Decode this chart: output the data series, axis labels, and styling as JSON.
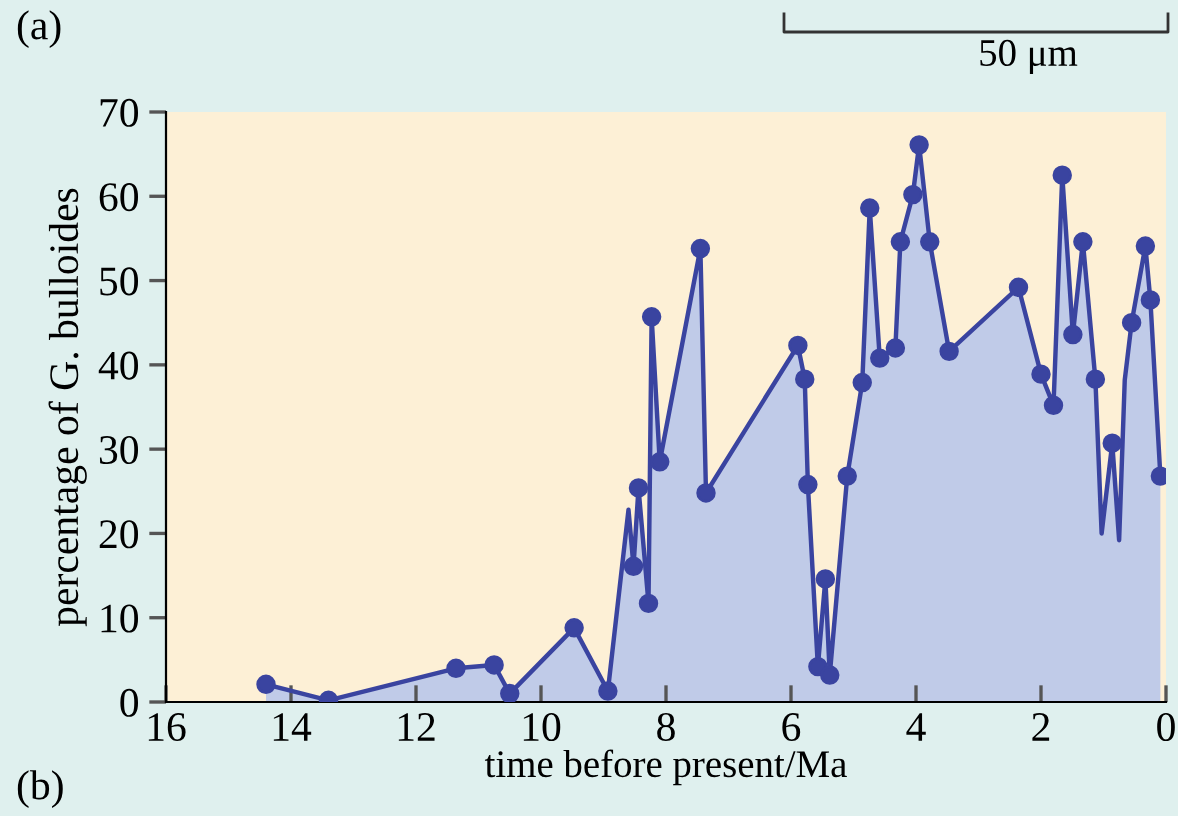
{
  "chart_data": {
    "type": "area",
    "xlabel": "time before present/Ma",
    "ylabel": "percentage of G. bulloides",
    "xlim": [
      16,
      0
    ],
    "xticks": [
      16,
      14,
      12,
      10,
      8,
      6,
      4,
      2,
      0
    ],
    "ylim": [
      0,
      70
    ],
    "yticks": [
      0,
      10,
      20,
      30,
      40,
      50,
      60,
      70
    ],
    "grid": false,
    "annotations": [
      "(a)",
      "50 μm",
      "(b)"
    ],
    "series": [
      {
        "color": "#3a44a0",
        "marker": "none",
        "x": [
          14.4,
          13.4,
          11.36,
          10.75,
          10.5,
          9.47,
          8.93,
          8.6,
          8.52,
          8.44,
          8.28,
          8.23,
          8.1,
          7.45,
          7.36,
          5.89,
          5.78,
          5.73,
          5.57,
          5.45,
          5.38,
          5.1,
          4.86,
          4.74,
          4.58,
          4.33,
          4.25,
          4.05,
          3.95,
          3.78,
          3.47,
          2.36,
          2.0,
          1.8,
          1.66,
          1.49,
          1.33,
          1.13,
          1.03,
          0.86,
          0.75,
          0.66,
          0.55,
          0.33,
          0.25,
          0.09
        ],
        "values": [
          2.1,
          0.2,
          4.0,
          4.4,
          1.0,
          8.8,
          1.3,
          22.8,
          16.1,
          25.4,
          11.7,
          45.7,
          28.5,
          53.8,
          24.8,
          42.3,
          38.3,
          25.8,
          4.2,
          14.6,
          3.2,
          26.8,
          37.9,
          58.6,
          40.8,
          42.0,
          54.6,
          60.2,
          66.1,
          54.6,
          41.6,
          49.2,
          38.9,
          35.2,
          62.5,
          43.6,
          54.6,
          38.3,
          20.0,
          30.7,
          19.2,
          38.2,
          45.0,
          54.1,
          47.7,
          26.8
        ]
      },
      {
        "type": "scatter",
        "color": "#3a44a0",
        "marker": "circle",
        "x": [
          14.4,
          13.4,
          11.36,
          10.75,
          10.5,
          9.47,
          8.93,
          8.52,
          8.44,
          8.28,
          8.23,
          8.1,
          7.45,
          7.36,
          5.89,
          5.78,
          5.73,
          5.57,
          5.45,
          5.38,
          5.1,
          4.86,
          4.74,
          4.58,
          4.33,
          4.25,
          4.05,
          3.95,
          3.78,
          3.47,
          2.36,
          2.0,
          1.8,
          1.66,
          1.49,
          1.33,
          1.13,
          0.86,
          0.55,
          0.33,
          0.25,
          0.09
        ],
        "values": [
          2.1,
          0.2,
          4.0,
          4.4,
          1.0,
          8.8,
          1.3,
          16.1,
          25.4,
          11.7,
          45.7,
          28.5,
          53.8,
          24.8,
          42.3,
          38.3,
          25.8,
          4.2,
          14.6,
          3.2,
          26.8,
          37.9,
          58.6,
          40.8,
          42.0,
          54.6,
          60.2,
          66.1,
          54.6,
          41.6,
          49.2,
          38.9,
          35.2,
          62.5,
          43.6,
          54.6,
          38.3,
          30.7,
          45.0,
          54.1,
          47.7,
          26.8
        ]
      }
    ]
  }
}
